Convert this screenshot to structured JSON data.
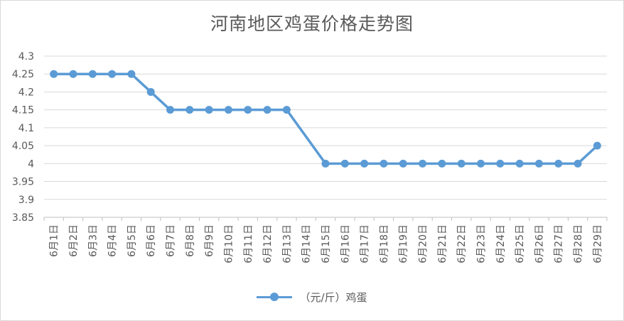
{
  "chart_data": {
    "type": "line",
    "title": "河南地区鸡蛋价格走势图",
    "xlabel": "",
    "ylabel": "",
    "ylim": [
      3.85,
      4.3
    ],
    "y_ticks": [
      "4.3",
      "4.25",
      "4.2",
      "4.15",
      "4.1",
      "4.05",
      "4",
      "3.95",
      "3.9",
      "3.85"
    ],
    "categories": [
      "6月1日",
      "6月2日",
      "6月3日",
      "6月4日",
      "6月5日",
      "6月6日",
      "6月7日",
      "6月8日",
      "6月9日",
      "6月10日",
      "6月11日",
      "6月12日",
      "6月13日",
      "6月14日",
      "6月15日",
      "6月16日",
      "6月17日",
      "6月18日",
      "6月19日",
      "6月20日",
      "6月21日",
      "6月22日",
      "6月23日",
      "6月24日",
      "6月25日",
      "6月26日",
      "6月27日",
      "6月28日",
      "6月29日"
    ],
    "series": [
      {
        "name": "（元/斤）鸡蛋",
        "values": [
          4.25,
          4.25,
          4.25,
          4.25,
          4.25,
          4.2,
          4.15,
          4.15,
          4.15,
          4.15,
          4.15,
          4.15,
          4.15,
          null,
          4.0,
          4.0,
          4.0,
          4.0,
          4.0,
          4.0,
          4.0,
          4.0,
          4.0,
          4.0,
          4.0,
          4.0,
          4.0,
          4.0,
          4.05
        ]
      }
    ],
    "grid": true,
    "legend_position": "bottom",
    "colors": {
      "series": "#5b9bd5",
      "grid": "#d9d9d9",
      "text": "#595959"
    }
  }
}
